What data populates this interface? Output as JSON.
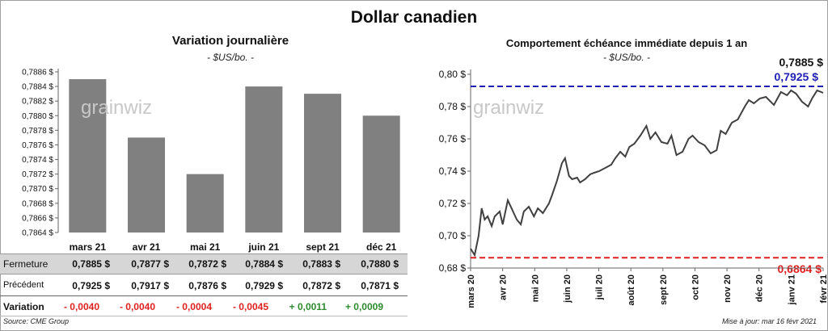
{
  "title": "Dollar canadien",
  "watermark": "grainwiz",
  "source": "Source: CME Group",
  "updated": "Mise à jour: mar 16 févr 2021",
  "colors": {
    "bars": "#808080",
    "line": "#404040",
    "high_line": "#1f1fb4",
    "low_line": "#e02020",
    "neg": "#e02020",
    "pos": "#2e8b2e"
  },
  "chart_data": [
    {
      "type": "bar",
      "title": "Variation  journalière",
      "subtitle": "- $US/bo. -",
      "categories": [
        "mars 21",
        "avr 21",
        "mai 21",
        "juin 21",
        "sept 21",
        "déc 21"
      ],
      "values": [
        0.7885,
        0.7877,
        0.7872,
        0.7884,
        0.7883,
        0.788
      ],
      "ylim": [
        0.7864,
        0.7886
      ],
      "yticks": [
        "0,7864 $",
        "0,7866 $",
        "0,7868 $",
        "0,7870 $",
        "0,7872 $",
        "0,7874 $",
        "0,7876 $",
        "0,7878 $",
        "0,7880 $",
        "0,7882 $",
        "0,7884 $",
        "0,7886 $"
      ],
      "grid": false
    },
    {
      "type": "line",
      "title": "Comportement échéance immédiate depuis 1 an",
      "subtitle": "- $US/bo. -",
      "x_ticks": [
        "mars 20",
        "avr 20",
        "mai 20",
        "juin 20",
        "juil 20",
        "août 20",
        "sept 20",
        "oct 20",
        "nov 20",
        "déc 20",
        "janv 21",
        "févr 21"
      ],
      "ylim": [
        0.68,
        0.8
      ],
      "yticks": [
        "0,68 $",
        "0,70 $",
        "0,72 $",
        "0,74 $",
        "0,76 $",
        "0,78 $",
        "0,80 $"
      ],
      "x": [
        "2020-03-02",
        "2020-03-06",
        "2020-03-10",
        "2020-03-13",
        "2020-03-16",
        "2020-03-19",
        "2020-03-23",
        "2020-03-26",
        "2020-03-31",
        "2020-04-03",
        "2020-04-08",
        "2020-04-14",
        "2020-04-17",
        "2020-04-21",
        "2020-04-24",
        "2020-04-29",
        "2020-05-04",
        "2020-05-08",
        "2020-05-13",
        "2020-05-19",
        "2020-05-22",
        "2020-05-27",
        "2020-06-01",
        "2020-06-04",
        "2020-06-08",
        "2020-06-11",
        "2020-06-16",
        "2020-06-19",
        "2020-06-24",
        "2020-06-29",
        "2020-07-03",
        "2020-07-08",
        "2020-07-14",
        "2020-07-20",
        "2020-07-24",
        "2020-07-29",
        "2020-08-03",
        "2020-08-07",
        "2020-08-12",
        "2020-08-18",
        "2020-08-24",
        "2020-08-28",
        "2020-09-02",
        "2020-09-08",
        "2020-09-14",
        "2020-09-18",
        "2020-09-23",
        "2020-09-29",
        "2020-10-05",
        "2020-10-09",
        "2020-10-15",
        "2020-10-21",
        "2020-10-27",
        "2020-11-02",
        "2020-11-06",
        "2020-11-11",
        "2020-11-17",
        "2020-11-23",
        "2020-11-30",
        "2020-12-04",
        "2020-12-09",
        "2020-12-15",
        "2020-12-21",
        "2020-12-29",
        "2021-01-05",
        "2021-01-11",
        "2021-01-15",
        "2021-01-20",
        "2021-01-26",
        "2021-02-01",
        "2021-02-05",
        "2021-02-10",
        "2021-02-16"
      ],
      "values": [
        0.692,
        0.688,
        0.7,
        0.717,
        0.71,
        0.712,
        0.706,
        0.712,
        0.715,
        0.707,
        0.722,
        0.714,
        0.71,
        0.707,
        0.715,
        0.718,
        0.712,
        0.717,
        0.714,
        0.72,
        0.725,
        0.734,
        0.745,
        0.748,
        0.737,
        0.735,
        0.736,
        0.733,
        0.735,
        0.738,
        0.739,
        0.74,
        0.742,
        0.744,
        0.748,
        0.752,
        0.749,
        0.755,
        0.757,
        0.762,
        0.768,
        0.76,
        0.764,
        0.758,
        0.757,
        0.762,
        0.75,
        0.752,
        0.76,
        0.762,
        0.758,
        0.756,
        0.751,
        0.753,
        0.765,
        0.763,
        0.77,
        0.772,
        0.78,
        0.784,
        0.782,
        0.785,
        0.786,
        0.781,
        0.789,
        0.787,
        0.79,
        0.788,
        0.783,
        0.78,
        0.785,
        0.79,
        0.7885
      ],
      "last_label": "0,7885 $",
      "high": 0.7925,
      "high_label": "0,7925  $",
      "low": 0.6864,
      "low_label": "0,6864  $",
      "grid": false
    }
  ],
  "table": {
    "rows": [
      {
        "label": "Fermeture",
        "values": [
          "0,7885  $",
          "0,7877  $",
          "0,7872  $",
          "0,7884  $",
          "0,7883  $",
          "0,7880  $"
        ]
      },
      {
        "label": "Précédent",
        "values": [
          "0,7925  $",
          "0,7917  $",
          "0,7876  $",
          "0,7929  $",
          "0,7872  $",
          "0,7871  $"
        ]
      },
      {
        "label": "Variation",
        "values": [
          "- 0,0040",
          "- 0,0040",
          "- 0,0004",
          "- 0,0045",
          "+ 0,0011",
          "+ 0,0009"
        ]
      }
    ]
  }
}
